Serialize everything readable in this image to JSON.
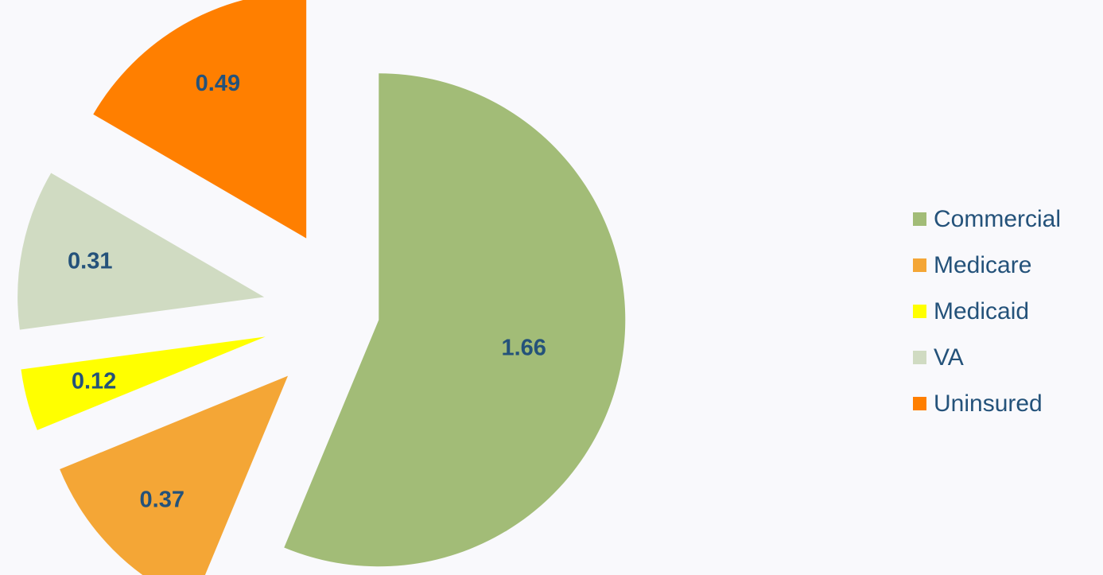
{
  "chart_data": {
    "type": "pie",
    "categories": [
      "Commercial",
      "Medicare",
      "Medicaid",
      "VA",
      "Uninsured"
    ],
    "values": [
      1.66,
      0.37,
      0.12,
      0.31,
      0.49
    ],
    "colors": [
      "#a2bc77",
      "#f4a636",
      "#ffff00",
      "#d0dbc2",
      "#ff7f00"
    ],
    "legend": "right"
  }
}
